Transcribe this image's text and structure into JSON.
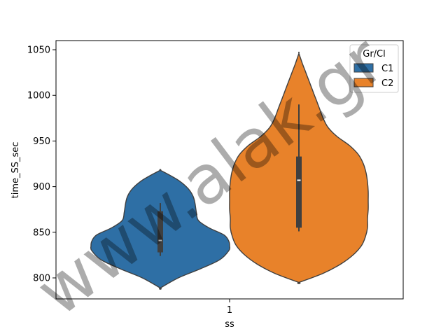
{
  "chart_data": {
    "type": "violin",
    "xlabel": "ss",
    "ylabel": "time_SS_sec",
    "categories": [
      "1"
    ],
    "ylim": [
      777,
      1060
    ],
    "yticks": [
      800,
      850,
      900,
      950,
      1000,
      1050
    ],
    "legend": {
      "title": "Gr/Cl",
      "position": "top-right"
    },
    "series": [
      {
        "name": "C1",
        "color": "#2e6fa5",
        "min": 789,
        "max": 918,
        "q1": 828,
        "median": 841,
        "q3": 873,
        "whisker_low": 824,
        "whisker_high": 882,
        "density": [
          [
            789,
            0.0
          ],
          [
            800,
            0.26
          ],
          [
            810,
            0.58
          ],
          [
            820,
            0.86
          ],
          [
            830,
            0.99
          ],
          [
            835,
            1.0
          ],
          [
            840,
            0.99
          ],
          [
            847,
            0.92
          ],
          [
            855,
            0.7
          ],
          [
            863,
            0.55
          ],
          [
            872,
            0.52
          ],
          [
            882,
            0.5
          ],
          [
            890,
            0.47
          ],
          [
            898,
            0.4
          ],
          [
            906,
            0.28
          ],
          [
            912,
            0.15
          ],
          [
            918,
            0.0
          ]
        ]
      },
      {
        "name": "C2",
        "color": "#e8822a",
        "min": 795,
        "max": 1046,
        "q1": 855,
        "median": 907,
        "q3": 933,
        "whisker_low": 851,
        "whisker_high": 990,
        "density": [
          [
            795,
            0.0
          ],
          [
            805,
            0.35
          ],
          [
            815,
            0.6
          ],
          [
            825,
            0.78
          ],
          [
            835,
            0.9
          ],
          [
            845,
            0.96
          ],
          [
            855,
            0.99
          ],
          [
            865,
            0.99
          ],
          [
            875,
            1.0
          ],
          [
            885,
            1.0
          ],
          [
            895,
            1.0
          ],
          [
            905,
            0.99
          ],
          [
            915,
            0.97
          ],
          [
            925,
            0.93
          ],
          [
            935,
            0.86
          ],
          [
            945,
            0.73
          ],
          [
            955,
            0.55
          ],
          [
            965,
            0.42
          ],
          [
            975,
            0.35
          ],
          [
            985,
            0.3
          ],
          [
            995,
            0.25
          ],
          [
            1005,
            0.2
          ],
          [
            1015,
            0.15
          ],
          [
            1025,
            0.1
          ],
          [
            1035,
            0.05
          ],
          [
            1046,
            0.0
          ]
        ]
      }
    ]
  },
  "watermark": "www.alak.gr"
}
